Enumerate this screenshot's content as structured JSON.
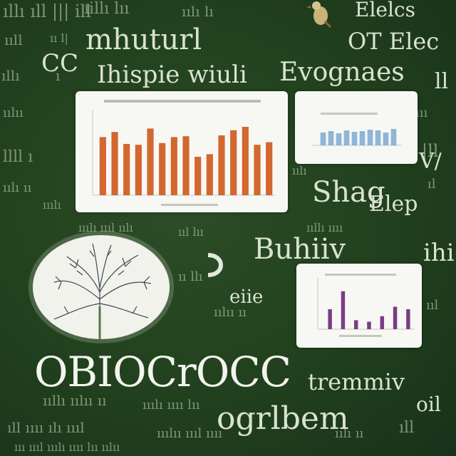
{
  "title": "OBIOCrOCC",
  "words": {
    "w1": "Elelcs",
    "w2": "mhuturl",
    "w3": "OT Elec",
    "w4": "Ihispie wiuli",
    "w5": "Evognaes",
    "w6": "Shag",
    "w7": "Elep",
    "w8": "Buhiiv",
    "w9": "ihi",
    "w10": "eiie",
    "w11": "tremmiv",
    "w12": "oil",
    "w13": "ogrlbem",
    "w14": "CC",
    "w15": "ll",
    "w16": "V/"
  },
  "icons": [
    "bird-icon",
    "tree-illustration-icon"
  ],
  "chart_data": [
    {
      "type": "bar",
      "values": [
        68,
        74,
        60,
        59,
        78,
        61,
        68,
        69,
        45,
        48,
        70,
        76,
        80,
        59,
        62
      ],
      "ylim": [
        0,
        100
      ],
      "bar_color": "#d2672f"
    },
    {
      "type": "bar",
      "values": [
        18,
        20,
        17,
        21,
        19,
        20,
        22,
        21,
        18,
        23
      ],
      "ylim": [
        0,
        40
      ],
      "bar_color": "#8fb5d8"
    },
    {
      "type": "bar",
      "values": [
        40,
        76,
        18,
        15,
        26,
        45,
        40
      ],
      "ylim": [
        0,
        100
      ],
      "bar_color": "#7a3d86"
    }
  ]
}
